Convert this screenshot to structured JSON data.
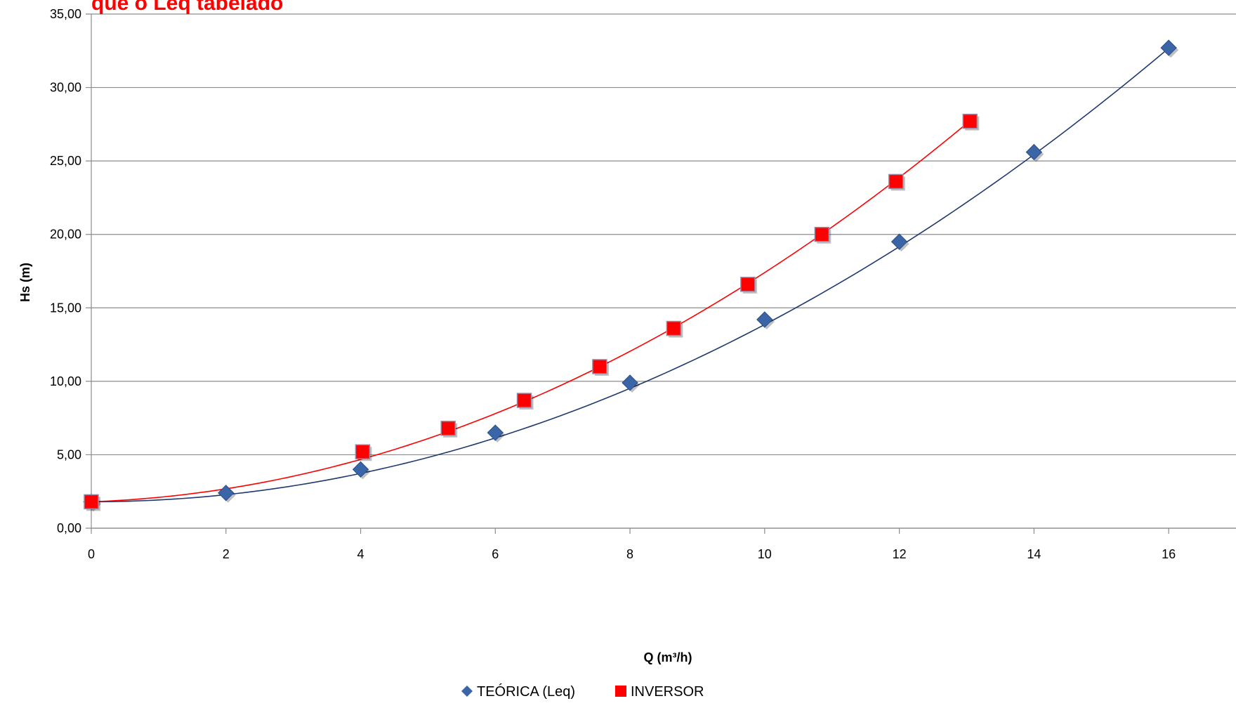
{
  "chart_data": {
    "type": "scatter",
    "title": "que o Leq tabelado",
    "title_color": "#ff0000",
    "xlabel": "Q (m³/h)",
    "ylabel": "Hs (m)",
    "xlim": [
      0,
      17
    ],
    "ylim": [
      0,
      35
    ],
    "x_ticks": [
      0,
      2,
      4,
      6,
      8,
      10,
      12,
      14,
      16
    ],
    "x_tick_labels": [
      "0",
      "2",
      "4",
      "6",
      "8",
      "10",
      "12",
      "14",
      "16"
    ],
    "y_ticks": [
      0,
      5,
      10,
      15,
      20,
      25,
      30,
      35
    ],
    "y_tick_labels": [
      "0,00",
      "5,00",
      "10,00",
      "15,00",
      "20,00",
      "25,00",
      "30,00",
      "35,00"
    ],
    "grid": "horizontal",
    "legend_position": "bottom",
    "series": [
      {
        "name": "TEÓRICA (Leq)",
        "marker": "diamond",
        "color": "#3a66a8",
        "line_color": "#1f3a6e",
        "trend": [
          1.8,
          0.0,
          0.1206
        ],
        "points": [
          {
            "x": 0,
            "y": 1.8
          },
          {
            "x": 2,
            "y": 2.4
          },
          {
            "x": 4,
            "y": 4.0
          },
          {
            "x": 6,
            "y": 6.5
          },
          {
            "x": 8,
            "y": 9.9
          },
          {
            "x": 10,
            "y": 14.2
          },
          {
            "x": 12,
            "y": 19.5
          },
          {
            "x": 14,
            "y": 25.6
          },
          {
            "x": 16,
            "y": 32.7
          }
        ]
      },
      {
        "name": "INVERSOR",
        "marker": "square",
        "color": "#ff0000",
        "line_color": "#ff0000",
        "trend": [
          1.8,
          0.16,
          0.14
        ],
        "points": [
          {
            "x": 0,
            "y": 1.8
          },
          {
            "x": 4.03,
            "y": 5.2
          },
          {
            "x": 5.3,
            "y": 6.8
          },
          {
            "x": 6.43,
            "y": 8.7
          },
          {
            "x": 7.55,
            "y": 11.0
          },
          {
            "x": 8.65,
            "y": 13.6
          },
          {
            "x": 9.75,
            "y": 16.6
          },
          {
            "x": 10.85,
            "y": 20.0
          },
          {
            "x": 11.95,
            "y": 23.6
          },
          {
            "x": 13.05,
            "y": 27.7
          }
        ]
      }
    ]
  }
}
